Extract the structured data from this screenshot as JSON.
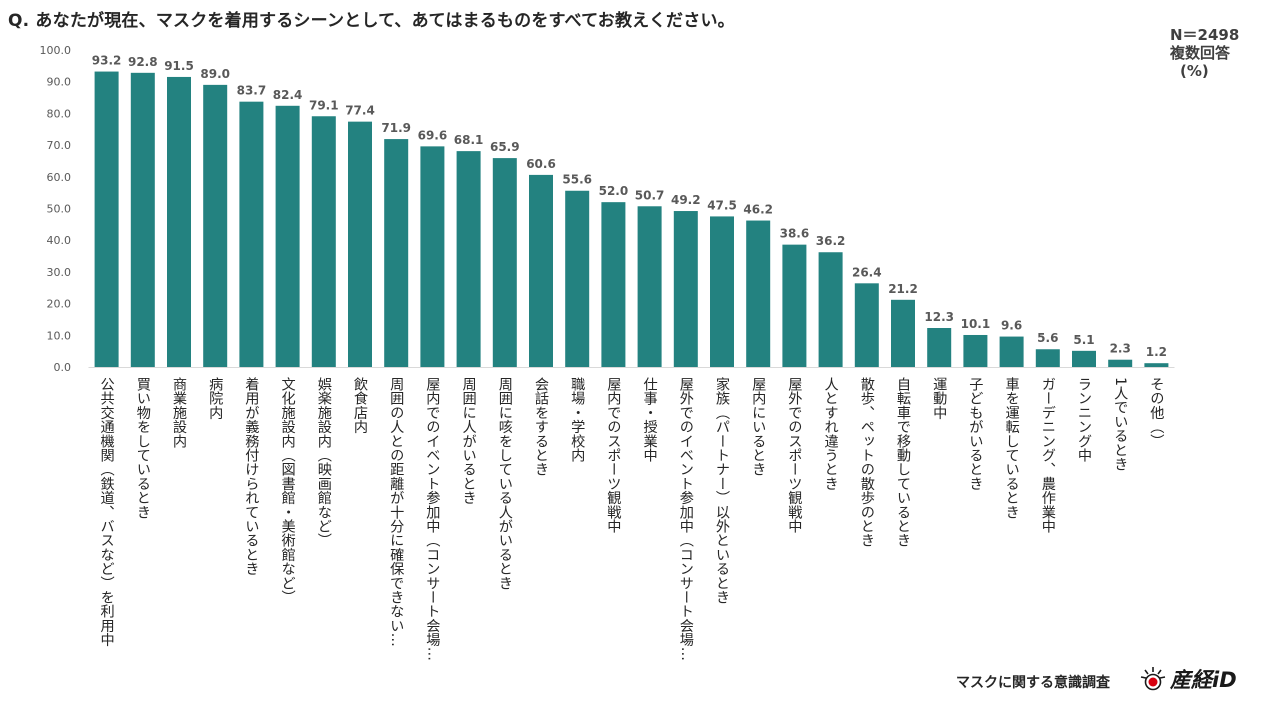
{
  "question": "Q. あなたが現在、マスクを着用するシーンとして、あてはまるものをすべてお教えください。",
  "sample_size": "N＝2498",
  "answer_type": "複数回答",
  "unit": "(%)",
  "footer": "マスクに関する意識調査",
  "brand": "産経iD",
  "colors": {
    "bar": "#238280",
    "text": "#404040",
    "grid": "#d9d9d9",
    "logo_red": "#d7000f"
  },
  "chart_data": {
    "type": "bar",
    "title": "Q. あなたが現在、マスクを着用するシーンとして、あてはまるものをすべてお教えください。",
    "xlabel": "",
    "ylabel": "",
    "ylim": [
      0,
      100
    ],
    "yticks": [
      "0.0",
      "10.0",
      "20.0",
      "30.0",
      "40.0",
      "50.0",
      "60.0",
      "70.0",
      "80.0",
      "90.0",
      "100.0"
    ],
    "grid": false,
    "categories": [
      "公共交通機関（鉄道、バスなど）を利用中",
      "買い物をしているとき",
      "商業施設内",
      "病院内",
      "着用が義務付けられているとき",
      "文化施設内（図書館・美術館など）",
      "娯楽施設内（映画館など）",
      "飲食店内",
      "周囲の人との距離が十分に確保できない…",
      "屋内でのイベント参加中（コンサート会場…",
      "周囲に人がいるとき",
      "周囲に咳をしている人がいるとき",
      "会話をするとき",
      "職場・学校内",
      "屋内でのスポーツ観戦中",
      "仕事・授業中",
      "屋外でのイベント参加中（コンサート会場…",
      "家族（パートナー）以外といるとき",
      "屋内にいるとき",
      "屋外でのスポーツ観戦中",
      "人とすれ違うとき",
      "散歩、ペットの散歩のとき",
      "自転車で移動しているとき",
      "運動中",
      "子どもがいるとき",
      "車を運転しているとき",
      "ガーデニング、農作業中",
      "ランニング中",
      "1人でいるとき",
      "その他（）"
    ],
    "values": [
      93.2,
      92.8,
      91.5,
      89.0,
      83.7,
      82.4,
      79.1,
      77.4,
      71.9,
      69.6,
      68.1,
      65.9,
      60.6,
      55.6,
      52.0,
      50.7,
      49.2,
      47.5,
      46.2,
      38.6,
      36.2,
      26.4,
      21.2,
      12.3,
      10.1,
      9.6,
      5.6,
      5.1,
      2.3,
      1.2
    ],
    "data_labels": [
      "93.2",
      "92.8",
      "91.5",
      "89.0",
      "83.7",
      "82.4",
      "79.1",
      "77.4",
      "71.9",
      "69.6",
      "68.1",
      "65.9",
      "60.6",
      "55.6",
      "52.0",
      "50.7",
      "49.2",
      "47.5",
      "46.2",
      "38.6",
      "36.2",
      "26.4",
      "21.2",
      "12.3",
      "10.1",
      "9.6",
      "5.6",
      "5.1",
      "2.3",
      "1.2"
    ]
  }
}
